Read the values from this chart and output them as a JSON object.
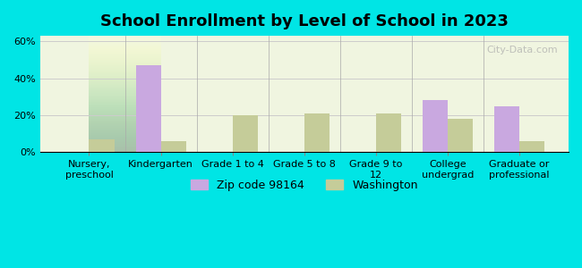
{
  "title": "School Enrollment by Level of School in 2023",
  "categories": [
    "Nursery,\npreschool",
    "Kindergarten",
    "Grade 1 to 4",
    "Grade 5 to 8",
    "Grade 9 to\n12",
    "College\nundergrad",
    "Graduate or\nprofessional"
  ],
  "zip_values": [
    0,
    47,
    0,
    0,
    0,
    28,
    25
  ],
  "wa_values": [
    7,
    6,
    20,
    21,
    21,
    18,
    6
  ],
  "zip_color": "#c9a8e0",
  "wa_color": "#c5cc99",
  "background_outer": "#00e5e5",
  "background_inner": "#f0f5e0",
  "yticks": [
    0,
    20,
    40,
    60
  ],
  "ylim": [
    0,
    63
  ],
  "legend_zip": "Zip code 98164",
  "legend_wa": "Washington",
  "bar_width": 0.35,
  "title_fontsize": 13,
  "tick_fontsize": 8,
  "legend_fontsize": 9
}
